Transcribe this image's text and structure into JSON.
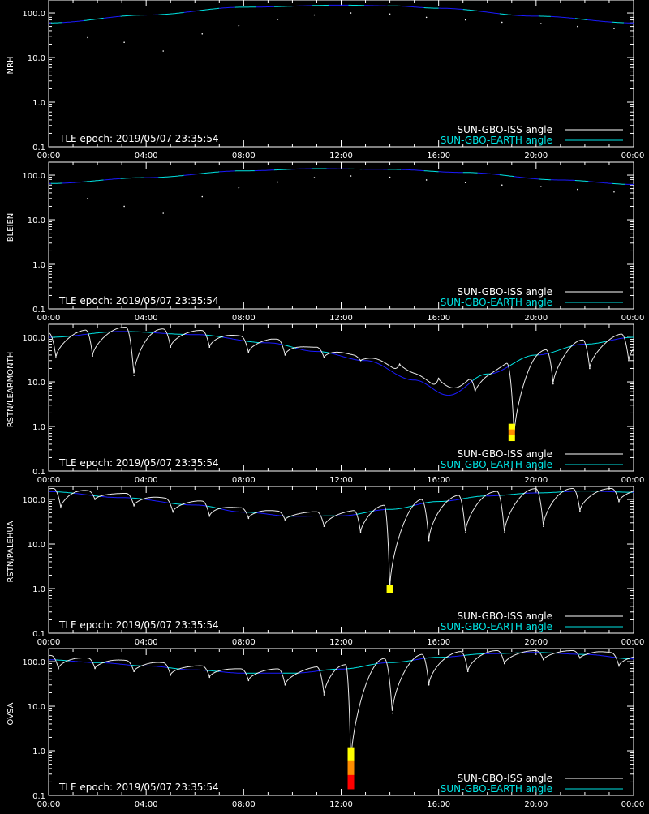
{
  "colors": {
    "background": "#000000",
    "axes": "#ffffff",
    "iss_line": "#ffffff",
    "earth_line": "#00e5e5",
    "earth_line_below": "#1a1aff",
    "heat_high": "#ffff00",
    "heat_mid": "#ff8c00",
    "heat_low": "#ff0000"
  },
  "chart_data": [
    {
      "type": "line",
      "ylabel": "NRH",
      "annotation": "TLE epoch: 2019/05/07 23:35:54",
      "ylog": true,
      "ylim": [
        0.1,
        180
      ],
      "xlim": [
        0,
        24
      ],
      "xticks": [
        "00:00",
        "04:00",
        "08:00",
        "12:00",
        "16:00",
        "20:00",
        "00:00"
      ],
      "yticks": [
        "0.1",
        "1.0",
        "10.0",
        "100.0"
      ],
      "legend": [
        {
          "label": "SUN-GBO-ISS angle",
          "color": "#ffffff"
        },
        {
          "label": "SUN-GBO-EARTH angle",
          "color": "#00e5e5"
        }
      ],
      "earth_curve": {
        "x": [
          0,
          4,
          8,
          12,
          14,
          16,
          20,
          24
        ],
        "y": [
          60,
          90,
          135,
          150,
          145,
          128,
          85,
          60
        ]
      },
      "iss_dips": [
        {
          "x": 1.6,
          "y": 28
        },
        {
          "x": 3.1,
          "y": 22
        },
        {
          "x": 4.7,
          "y": 14
        },
        {
          "x": 6.3,
          "y": 34
        },
        {
          "x": 7.8,
          "y": 52
        },
        {
          "x": 9.4,
          "y": 72
        },
        {
          "x": 10.9,
          "y": 90
        },
        {
          "x": 12.4,
          "y": 100
        },
        {
          "x": 14.0,
          "y": 95
        },
        {
          "x": 15.5,
          "y": 80
        },
        {
          "x": 17.1,
          "y": 70
        },
        {
          "x": 18.6,
          "y": 62
        },
        {
          "x": 20.2,
          "y": 58
        },
        {
          "x": 21.7,
          "y": 50
        },
        {
          "x": 23.2,
          "y": 45
        }
      ],
      "markers": []
    },
    {
      "type": "line",
      "ylabel": "BLEIEN",
      "annotation": "TLE epoch: 2019/05/07 23:35:54",
      "ylog": true,
      "ylim": [
        0.1,
        180
      ],
      "xlim": [
        0,
        24
      ],
      "xticks": [
        "00:00",
        "04:00",
        "08:00",
        "12:00",
        "16:00",
        "20:00",
        "00:00"
      ],
      "yticks": [
        "0.1",
        "1.0",
        "10.0",
        "100.0"
      ],
      "legend": [
        {
          "label": "SUN-GBO-ISS angle",
          "color": "#ffffff"
        },
        {
          "label": "SUN-GBO-EARTH angle",
          "color": "#00e5e5"
        }
      ],
      "earth_curve": {
        "x": [
          0,
          4,
          8,
          11,
          14,
          17,
          21,
          24
        ],
        "y": [
          65,
          88,
          125,
          140,
          135,
          115,
          78,
          62
        ]
      },
      "iss_dips": [
        {
          "x": 1.6,
          "y": 30
        },
        {
          "x": 3.1,
          "y": 20
        },
        {
          "x": 4.7,
          "y": 14
        },
        {
          "x": 6.3,
          "y": 33
        },
        {
          "x": 7.8,
          "y": 52
        },
        {
          "x": 9.4,
          "y": 70
        },
        {
          "x": 10.9,
          "y": 88
        },
        {
          "x": 12.4,
          "y": 96
        },
        {
          "x": 14.0,
          "y": 90
        },
        {
          "x": 15.5,
          "y": 78
        },
        {
          "x": 17.1,
          "y": 68
        },
        {
          "x": 18.6,
          "y": 60
        },
        {
          "x": 20.2,
          "y": 56
        },
        {
          "x": 21.7,
          "y": 48
        },
        {
          "x": 23.2,
          "y": 42
        }
      ],
      "markers": []
    },
    {
      "type": "line",
      "ylabel": "RSTN/LEARMONTH",
      "annotation": "TLE epoch: 2019/05/07 23:35:54",
      "ylog": true,
      "ylim": [
        0.1,
        180
      ],
      "xlim": [
        0,
        24
      ],
      "xticks": [
        "00:00",
        "04:00",
        "08:00",
        "12:00",
        "16:00",
        "20:00",
        "00:00"
      ],
      "yticks": [
        "0.1",
        "1.0",
        "10.0",
        "100.0"
      ],
      "legend": [
        {
          "label": "SUN-GBO-ISS angle",
          "color": "#ffffff"
        },
        {
          "label": "SUN-GBO-EARTH angle",
          "color": "#00e5e5"
        }
      ],
      "earth_curve": {
        "x": [
          0,
          3,
          6,
          9,
          11,
          13,
          15,
          16.4,
          18,
          20,
          22,
          24
        ],
        "y": [
          100,
          135,
          115,
          75,
          48,
          30,
          11,
          5,
          15,
          40,
          70,
          100
        ]
      },
      "iss_dips": [
        {
          "x": 0.3,
          "y": 35
        },
        {
          "x": 1.8,
          "y": 38
        },
        {
          "x": 3.5,
          "y": 14
        },
        {
          "x": 5.0,
          "y": 60
        },
        {
          "x": 6.6,
          "y": 60
        },
        {
          "x": 8.2,
          "y": 45
        },
        {
          "x": 9.7,
          "y": 40
        },
        {
          "x": 11.3,
          "y": 35
        },
        {
          "x": 12.8,
          "y": 30
        },
        {
          "x": 14.4,
          "y": 25
        },
        {
          "x": 16.0,
          "y": 12
        },
        {
          "x": 17.5,
          "y": 6
        },
        {
          "x": 19.1,
          "y": 0.6
        },
        {
          "x": 20.7,
          "y": 9
        },
        {
          "x": 22.2,
          "y": 20
        },
        {
          "x": 23.8,
          "y": 30
        }
      ],
      "markers": [
        {
          "x": 19.0,
          "y_top": 1.15,
          "y_bottom": 0.48,
          "bands": [
            "#ffff00",
            "#ff8c00",
            "#ffff00"
          ]
        }
      ]
    },
    {
      "type": "line",
      "ylabel": "RSTN/PALEHUA",
      "annotation": "TLE epoch: 2019/05/07 23:35:54",
      "ylog": true,
      "ylim": [
        0.1,
        180
      ],
      "xlim": [
        0,
        24
      ],
      "xticks": [
        "00:00",
        "04:00",
        "08:00",
        "12:00",
        "16:00",
        "20:00",
        "00:00"
      ],
      "yticks": [
        "0.1",
        "1.0",
        "10.0",
        "100.0"
      ],
      "legend": [
        {
          "label": "SUN-GBO-ISS angle",
          "color": "#ffffff"
        },
        {
          "label": "SUN-GBO-EARTH angle",
          "color": "#00e5e5"
        }
      ],
      "earth_curve": {
        "x": [
          0,
          3,
          6,
          8,
          10,
          12,
          14,
          16,
          18,
          20,
          22,
          24
        ],
        "y": [
          150,
          110,
          75,
          52,
          42,
          43,
          60,
          90,
          120,
          140,
          155,
          145
        ]
      },
      "iss_dips": [
        {
          "x": 0.5,
          "y": 65
        },
        {
          "x": 1.9,
          "y": 100
        },
        {
          "x": 3.5,
          "y": 72
        },
        {
          "x": 5.1,
          "y": 52
        },
        {
          "x": 6.6,
          "y": 42
        },
        {
          "x": 8.2,
          "y": 38
        },
        {
          "x": 9.7,
          "y": 35
        },
        {
          "x": 11.3,
          "y": 25
        },
        {
          "x": 12.8,
          "y": 18
        },
        {
          "x": 14.0,
          "y": 1.0
        },
        {
          "x": 15.6,
          "y": 12
        },
        {
          "x": 17.1,
          "y": 18
        },
        {
          "x": 18.7,
          "y": 18
        },
        {
          "x": 20.3,
          "y": 25
        },
        {
          "x": 21.8,
          "y": 55
        },
        {
          "x": 23.4,
          "y": 90
        }
      ],
      "markers": [
        {
          "x": 14.0,
          "y_top": 1.2,
          "y_bottom": 0.8,
          "bands": [
            "#ffff00"
          ]
        }
      ]
    },
    {
      "type": "line",
      "ylabel": "OVSA",
      "annotation": "TLE epoch: 2019/05/07 23:35:54",
      "ylog": true,
      "ylim": [
        0.1,
        180
      ],
      "xlim": [
        0,
        24
      ],
      "xticks": [
        "00:00",
        "04:00",
        "08:00",
        "12:00",
        "16:00",
        "20:00",
        "00:00"
      ],
      "yticks": [
        "0.1",
        "1.0",
        "10.0",
        "100.0"
      ],
      "legend": [
        {
          "label": "SUN-GBO-ISS angle",
          "color": "#ffffff"
        },
        {
          "label": "SUN-GBO-EARTH angle",
          "color": "#00e5e5"
        }
      ],
      "earth_curve": {
        "x": [
          0,
          2,
          4,
          6,
          8,
          10,
          12,
          14,
          16,
          18,
          20,
          22,
          24
        ],
        "y": [
          110,
          95,
          80,
          65,
          55,
          55,
          68,
          95,
          125,
          150,
          160,
          145,
          115
        ]
      },
      "iss_dips": [
        {
          "x": 0.4,
          "y": 70
        },
        {
          "x": 1.9,
          "y": 70
        },
        {
          "x": 3.5,
          "y": 60
        },
        {
          "x": 5.0,
          "y": 50
        },
        {
          "x": 6.6,
          "y": 45
        },
        {
          "x": 8.2,
          "y": 38
        },
        {
          "x": 9.7,
          "y": 30
        },
        {
          "x": 11.3,
          "y": 18
        },
        {
          "x": 12.4,
          "y": 0.5
        },
        {
          "x": 14.1,
          "y": 7
        },
        {
          "x": 15.6,
          "y": 30
        },
        {
          "x": 17.2,
          "y": 60
        },
        {
          "x": 18.7,
          "y": 90
        },
        {
          "x": 20.3,
          "y": 110
        },
        {
          "x": 21.8,
          "y": 120
        },
        {
          "x": 23.4,
          "y": 80
        }
      ],
      "markers": [
        {
          "x": 12.4,
          "y_top": 1.2,
          "y_bottom": 0.14,
          "bands": [
            "#ffff00",
            "#ff8c00",
            "#ff0000"
          ]
        }
      ]
    }
  ]
}
